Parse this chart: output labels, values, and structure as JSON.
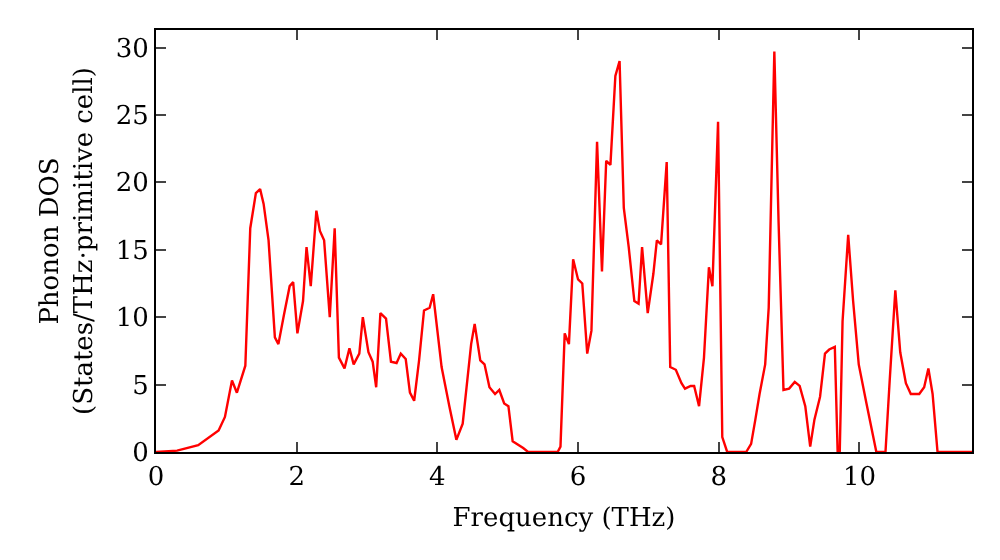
{
  "chart_data": {
    "type": "line",
    "xlabel": "Frequency (THz)",
    "ylabel": "Phonon DOS\n(States/THz·primitive cell)",
    "xlim": [
      0,
      11.6
    ],
    "ylim": [
      0,
      31.3
    ],
    "xticks": [
      0,
      2,
      4,
      6,
      8,
      10
    ],
    "yticks": [
      0,
      5,
      10,
      15,
      20,
      25,
      30
    ],
    "grid": false,
    "marker": "none",
    "line_style": "solid",
    "series": [
      {
        "color": "#ff0000",
        "x": [
          0,
          0.3,
          0.6,
          0.89,
          0.98,
          1.08,
          1.15,
          1.27,
          1.34,
          1.42,
          1.48,
          1.53,
          1.6,
          1.69,
          1.74,
          1.82,
          1.9,
          1.95,
          2.01,
          2.09,
          2.14,
          2.2,
          2.28,
          2.33,
          2.39,
          2.47,
          2.54,
          2.6,
          2.68,
          2.75,
          2.81,
          2.89,
          2.94,
          3.02,
          3.08,
          3.13,
          3.19,
          3.27,
          3.34,
          3.42,
          3.48,
          3.55,
          3.61,
          3.67,
          3.74,
          3.81,
          3.89,
          3.94,
          4.06,
          4.17,
          4.27,
          4.36,
          4.48,
          4.53,
          4.61,
          4.67,
          4.74,
          4.82,
          4.88,
          4.95,
          5.01,
          5.07,
          5.22,
          5.29,
          5.71,
          5.75,
          5.81,
          5.87,
          5.93,
          6.0,
          6.06,
          6.13,
          6.19,
          6.27,
          6.34,
          6.4,
          6.46,
          6.53,
          6.59,
          6.65,
          6.72,
          6.8,
          6.86,
          6.91,
          6.99,
          7.07,
          7.12,
          7.18,
          7.26,
          7.31,
          7.39,
          7.47,
          7.52,
          7.6,
          7.65,
          7.72,
          7.79,
          7.86,
          7.91,
          7.99,
          8.05,
          8.12,
          8.39,
          8.46,
          8.52,
          8.58,
          8.66,
          8.71,
          8.79,
          8.85,
          8.92,
          9.0,
          9.08,
          9.15,
          9.23,
          9.3,
          9.36,
          9.44,
          9.51,
          9.57,
          9.65,
          9.69,
          9.72,
          9.76,
          9.84,
          9.91,
          9.99,
          10.1,
          10.24,
          10.37,
          10.43,
          10.51,
          10.58,
          10.66,
          10.73,
          10.85,
          10.92,
          10.98,
          11.04,
          11.11,
          11.6
        ],
        "values": [
          0,
          0.1,
          0.5,
          1.6,
          2.6,
          5.3,
          4.4,
          6.4,
          16.6,
          19.2,
          19.5,
          18.4,
          15.7,
          8.5,
          8.0,
          10.2,
          12.3,
          12.6,
          8.8,
          11.2,
          15.2,
          12.3,
          17.9,
          16.4,
          15.7,
          10.0,
          16.6,
          7.0,
          6.2,
          7.7,
          6.5,
          7.3,
          10.0,
          7.4,
          6.7,
          4.8,
          10.3,
          9.9,
          6.7,
          6.6,
          7.3,
          6.9,
          4.4,
          3.8,
          6.8,
          10.5,
          10.7,
          11.7,
          6.3,
          3.4,
          0.9,
          2.1,
          8.0,
          9.5,
          6.8,
          6.5,
          4.8,
          4.3,
          4.6,
          3.6,
          3.4,
          0.8,
          0.3,
          0,
          0,
          0.4,
          8.8,
          8.0,
          14.3,
          12.8,
          12.5,
          7.3,
          9.0,
          23.0,
          13.4,
          21.6,
          21.3,
          27.9,
          29.0,
          18.1,
          15.2,
          11.2,
          11.0,
          15.2,
          10.3,
          13.2,
          15.7,
          15.4,
          21.5,
          6.3,
          6.1,
          5.1,
          4.7,
          4.9,
          4.9,
          3.4,
          7.0,
          13.7,
          12.3,
          24.5,
          1.1,
          0,
          0,
          0.6,
          2.4,
          4.3,
          6.5,
          10.7,
          29.7,
          17.1,
          4.6,
          4.7,
          5.2,
          4.9,
          3.4,
          0.4,
          2.4,
          4.1,
          7.3,
          7.6,
          7.8,
          0,
          0,
          9.7,
          16.1,
          11.2,
          6.5,
          3.6,
          0,
          0,
          5.3,
          12.0,
          7.4,
          5.1,
          4.3,
          4.3,
          4.8,
          6.2,
          4.3,
          0,
          0
        ]
      }
    ]
  }
}
